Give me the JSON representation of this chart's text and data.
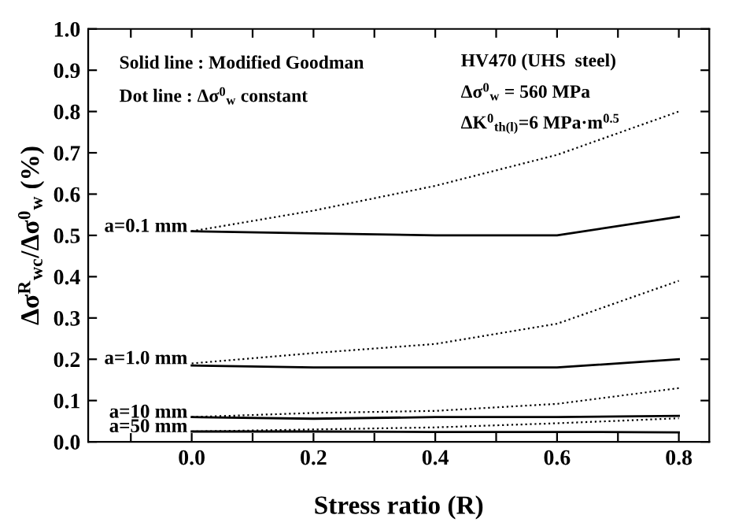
{
  "chart_data": {
    "type": "line",
    "xlabel": "Stress ratio (R)",
    "ylabel": "Δσ$^{R}$$_{wc}$/Δσ$^{0}$$_{w}$ (%)",
    "x": [
      0.0,
      0.2,
      0.4,
      0.6,
      0.8
    ],
    "series": [
      {
        "color": "#000000",
        "line_style": "dotted",
        "values": [
          0.51,
          0.56,
          0.62,
          0.695,
          0.8
        ]
      },
      {
        "color": "#000000",
        "line_style": "solid",
        "values": [
          0.51,
          0.505,
          0.5,
          0.5,
          0.545
        ]
      },
      {
        "color": "#000000",
        "line_style": "dotted",
        "values": [
          0.19,
          0.215,
          0.237,
          0.286,
          0.39
        ]
      },
      {
        "color": "#000000",
        "line_style": "solid",
        "values": [
          0.185,
          0.18,
          0.18,
          0.18,
          0.2
        ]
      },
      {
        "color": "#000000",
        "line_style": "dotted",
        "values": [
          0.06,
          0.07,
          0.075,
          0.092,
          0.13
        ]
      },
      {
        "color": "#000000",
        "line_style": "solid",
        "values": [
          0.06,
          0.056,
          0.06,
          0.06,
          0.063
        ]
      },
      {
        "color": "#000000",
        "line_style": "dotted",
        "values": [
          0.025,
          0.03,
          0.035,
          0.045,
          0.057
        ]
      },
      {
        "color": "#000000",
        "line_style": "solid",
        "values": [
          0.025,
          0.025,
          0.024,
          0.024,
          0.023
        ]
      }
    ],
    "xlim": [
      -0.17,
      0.85
    ],
    "xticks": [
      {
        "value": -0.1,
        "label": null
      },
      {
        "value": 0.0,
        "label": "0.0"
      },
      {
        "value": 0.1,
        "label": null
      },
      0.2,
      {
        "value": 0.3,
        "label": null
      },
      0.4,
      {
        "value": 0.5,
        "label": null
      },
      0.6,
      {
        "value": 0.7,
        "label": null
      },
      0.8
    ],
    "ylim": [
      0.0,
      1.0
    ],
    "yticks": [
      {
        "value": 0.0,
        "label": "0.0"
      },
      0.1,
      0.2,
      0.3,
      0.4,
      0.5,
      0.6,
      0.7,
      0.8,
      0.9,
      {
        "value": 1.0,
        "label": "1.0"
      }
    ],
    "grid": false,
    "legend": false,
    "marker": "none",
    "annotations": [
      "a=0.1 mm",
      "a=1.0 mm",
      "a=10 mm",
      "a=50 mm",
      "Solid line : Modified Goodman",
      "Dot line : Δσ$^{0}$$_{w}$ constant",
      "HV470 (UHS  steel)",
      "Δσ$^{0}$$_{w}$ = 560 MPa",
      "ΔK$^{0}$$_{th(l)}$=6 MPa·m$^{0.5}$"
    ]
  }
}
